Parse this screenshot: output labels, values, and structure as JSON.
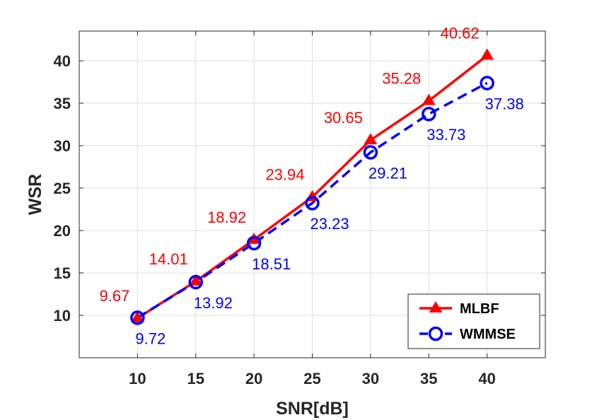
{
  "chart_data": {
    "type": "line",
    "xlabel": "SNR[dB]",
    "ylabel": "WSR",
    "x": [
      10,
      15,
      20,
      25,
      30,
      35,
      40
    ],
    "xlim": [
      5,
      45
    ],
    "ylim": [
      5,
      43.5
    ],
    "xticks": [
      10,
      15,
      20,
      25,
      30,
      35,
      40
    ],
    "yticks": [
      10,
      15,
      20,
      25,
      30,
      35,
      40
    ],
    "grid": true,
    "legend_position": "bottom-right",
    "series": [
      {
        "name": "MLBF",
        "color": "#ff0000",
        "line_style": "solid",
        "marker": "triangle",
        "values": [
          9.67,
          14.01,
          18.92,
          23.94,
          30.65,
          35.28,
          40.62
        ],
        "labels": [
          "9.67",
          "14.01",
          "18.92",
          "23.94",
          "30.65",
          "35.28",
          "40.62"
        ]
      },
      {
        "name": "WMMSE",
        "color": "#0000ff",
        "line_style": "dashed",
        "marker": "circle",
        "values": [
          9.72,
          13.92,
          18.51,
          23.23,
          29.21,
          33.73,
          37.38
        ],
        "labels": [
          "9.72",
          "13.92",
          "18.51",
          "23.23",
          "29.21",
          "33.73",
          "37.38"
        ]
      }
    ]
  }
}
